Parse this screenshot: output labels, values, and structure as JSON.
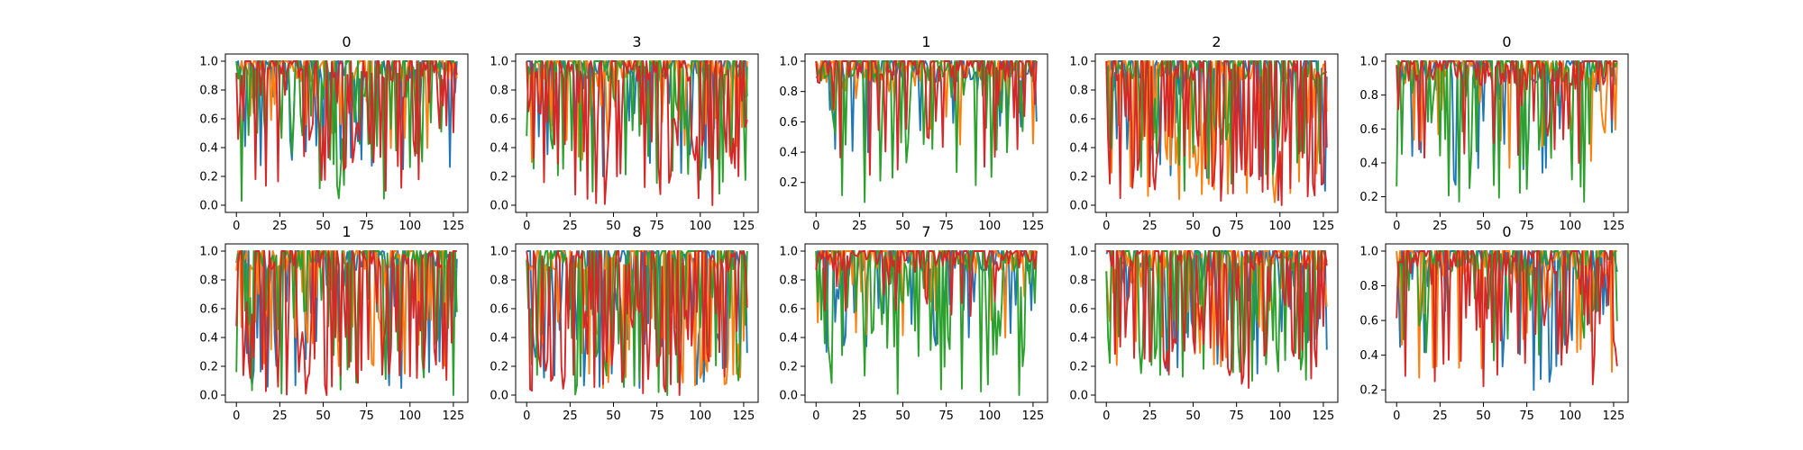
{
  "figure": {
    "background": "#ffffff"
  },
  "series_colors": [
    "#1f77b4",
    "#ff7f0e",
    "#2ca02c",
    "#d62728"
  ],
  "chart_data": [
    {
      "type": "line",
      "title": "0",
      "xlim": [
        0,
        127
      ],
      "ylim": [
        0.0,
        1.0
      ],
      "xticks": [
        "0",
        "25",
        "50",
        "75",
        "100",
        "125"
      ],
      "yticks": [
        "0.0",
        "0.2",
        "0.4",
        "0.6",
        "0.8",
        "1.0"
      ],
      "summary": {
        "n_points": 128,
        "series": [
          {
            "min": 0.25,
            "mean": 0.85,
            "dip_rate": 0.22
          },
          {
            "min": 0.35,
            "mean": 0.84,
            "dip_rate": 0.24
          },
          {
            "min": 0.03,
            "mean": 0.78,
            "dip_rate": 0.3
          },
          {
            "min": 0.1,
            "mean": 0.78,
            "dip_rate": 0.38
          }
        ]
      }
    },
    {
      "type": "line",
      "title": "3",
      "xlim": [
        0,
        127
      ],
      "ylim": [
        0.0,
        1.0
      ],
      "xticks": [
        "0",
        "25",
        "50",
        "75",
        "100",
        "125"
      ],
      "yticks": [
        "0.0",
        "0.2",
        "0.4",
        "0.6",
        "0.8",
        "1.0"
      ],
      "summary": {
        "n_points": 128,
        "series": [
          {
            "min": 0.2,
            "mean": 0.88,
            "dip_rate": 0.2
          },
          {
            "min": 0.3,
            "mean": 0.87,
            "dip_rate": 0.22
          },
          {
            "min": 0.08,
            "mean": 0.8,
            "dip_rate": 0.28
          },
          {
            "min": 0.0,
            "mean": 0.74,
            "dip_rate": 0.4
          }
        ]
      }
    },
    {
      "type": "line",
      "title": "1",
      "xlim": [
        0,
        127
      ],
      "ylim": [
        0.05,
        1.0
      ],
      "xticks": [
        "0",
        "25",
        "50",
        "75",
        "100",
        "125"
      ],
      "yticks": [
        "0.2",
        "0.4",
        "0.6",
        "0.8",
        "1.0"
      ],
      "summary": {
        "n_points": 128,
        "series": [
          {
            "min": 0.4,
            "mean": 0.92,
            "dip_rate": 0.15
          },
          {
            "min": 0.45,
            "mean": 0.92,
            "dip_rate": 0.15
          },
          {
            "min": 0.07,
            "mean": 0.82,
            "dip_rate": 0.25
          },
          {
            "min": 0.25,
            "mean": 0.88,
            "dip_rate": 0.22
          }
        ]
      }
    },
    {
      "type": "line",
      "title": "2",
      "xlim": [
        0,
        127
      ],
      "ylim": [
        0.0,
        1.0
      ],
      "xticks": [
        "0",
        "25",
        "50",
        "75",
        "100",
        "125"
      ],
      "yticks": [
        "0.0",
        "0.2",
        "0.4",
        "0.6",
        "0.8",
        "1.0"
      ],
      "summary": {
        "n_points": 128,
        "series": [
          {
            "min": 0.1,
            "mean": 0.8,
            "dip_rate": 0.3
          },
          {
            "min": 0.02,
            "mean": 0.72,
            "dip_rate": 0.38
          },
          {
            "min": 0.1,
            "mean": 0.78,
            "dip_rate": 0.3
          },
          {
            "min": 0.0,
            "mean": 0.62,
            "dip_rate": 0.48
          }
        ]
      }
    },
    {
      "type": "line",
      "title": "0",
      "xlim": [
        0,
        127
      ],
      "ylim": [
        0.15,
        1.0
      ],
      "xticks": [
        "0",
        "25",
        "50",
        "75",
        "100",
        "125"
      ],
      "yticks": [
        "0.2",
        "0.4",
        "0.6",
        "0.8",
        "1.0"
      ],
      "summary": {
        "n_points": 128,
        "series": [
          {
            "min": 0.27,
            "mean": 0.9,
            "dip_rate": 0.18
          },
          {
            "min": 0.37,
            "mean": 0.9,
            "dip_rate": 0.18
          },
          {
            "min": 0.17,
            "mean": 0.85,
            "dip_rate": 0.22
          },
          {
            "min": 0.4,
            "mean": 0.9,
            "dip_rate": 0.2
          }
        ]
      }
    },
    {
      "type": "line",
      "title": "1",
      "xlim": [
        0,
        127
      ],
      "ylim": [
        0.0,
        1.0
      ],
      "xticks": [
        "0",
        "25",
        "50",
        "75",
        "100",
        "125"
      ],
      "yticks": [
        "0.0",
        "0.2",
        "0.4",
        "0.6",
        "0.8",
        "1.0"
      ],
      "summary": {
        "n_points": 128,
        "series": [
          {
            "min": 0.05,
            "mean": 0.78,
            "dip_rate": 0.3
          },
          {
            "min": 0.15,
            "mean": 0.78,
            "dip_rate": 0.3
          },
          {
            "min": 0.0,
            "mean": 0.75,
            "dip_rate": 0.32
          },
          {
            "min": 0.0,
            "mean": 0.66,
            "dip_rate": 0.45
          }
        ]
      }
    },
    {
      "type": "line",
      "title": "8",
      "xlim": [
        0,
        127
      ],
      "ylim": [
        0.0,
        1.0
      ],
      "xticks": [
        "0",
        "25",
        "50",
        "75",
        "100",
        "125"
      ],
      "yticks": [
        "0.0",
        "0.2",
        "0.4",
        "0.6",
        "0.8",
        "1.0"
      ],
      "summary": {
        "n_points": 128,
        "series": [
          {
            "min": 0.05,
            "mean": 0.76,
            "dip_rate": 0.32
          },
          {
            "min": 0.05,
            "mean": 0.7,
            "dip_rate": 0.4
          },
          {
            "min": 0.0,
            "mean": 0.68,
            "dip_rate": 0.4
          },
          {
            "min": 0.0,
            "mean": 0.62,
            "dip_rate": 0.48
          }
        ]
      }
    },
    {
      "type": "line",
      "title": "7",
      "xlim": [
        0,
        127
      ],
      "ylim": [
        0.0,
        1.0
      ],
      "xticks": [
        "0",
        "25",
        "50",
        "75",
        "100",
        "125"
      ],
      "yticks": [
        "0.0",
        "0.2",
        "0.4",
        "0.6",
        "0.8",
        "1.0"
      ],
      "summary": {
        "n_points": 128,
        "series": [
          {
            "min": 0.3,
            "mean": 0.9,
            "dip_rate": 0.2
          },
          {
            "min": 0.4,
            "mean": 0.92,
            "dip_rate": 0.15
          },
          {
            "min": 0.0,
            "mean": 0.78,
            "dip_rate": 0.35
          },
          {
            "min": 0.55,
            "mean": 0.94,
            "dip_rate": 0.15
          }
        ]
      }
    },
    {
      "type": "line",
      "title": "0",
      "xlim": [
        0,
        127
      ],
      "ylim": [
        0.0,
        1.0
      ],
      "xticks": [
        "0",
        "25",
        "50",
        "75",
        "100",
        "125"
      ],
      "yticks": [
        "0.0",
        "0.2",
        "0.4",
        "0.6",
        "0.8",
        "1.0"
      ],
      "summary": {
        "n_points": 128,
        "series": [
          {
            "min": 0.15,
            "mean": 0.8,
            "dip_rate": 0.28
          },
          {
            "min": 0.2,
            "mean": 0.8,
            "dip_rate": 0.28
          },
          {
            "min": 0.1,
            "mean": 0.74,
            "dip_rate": 0.33
          },
          {
            "min": 0.05,
            "mean": 0.72,
            "dip_rate": 0.38
          }
        ]
      }
    },
    {
      "type": "line",
      "title": "0",
      "xlim": [
        0,
        127
      ],
      "ylim": [
        0.17,
        1.0
      ],
      "xticks": [
        "0",
        "25",
        "50",
        "75",
        "100",
        "125"
      ],
      "yticks": [
        "0.2",
        "0.4",
        "0.6",
        "0.8",
        "1.0"
      ],
      "summary": {
        "n_points": 128,
        "series": [
          {
            "min": 0.2,
            "mean": 0.9,
            "dip_rate": 0.18
          },
          {
            "min": 0.27,
            "mean": 0.9,
            "dip_rate": 0.18
          },
          {
            "min": 0.37,
            "mean": 0.88,
            "dip_rate": 0.2
          },
          {
            "min": 0.22,
            "mean": 0.86,
            "dip_rate": 0.28
          }
        ]
      }
    }
  ]
}
